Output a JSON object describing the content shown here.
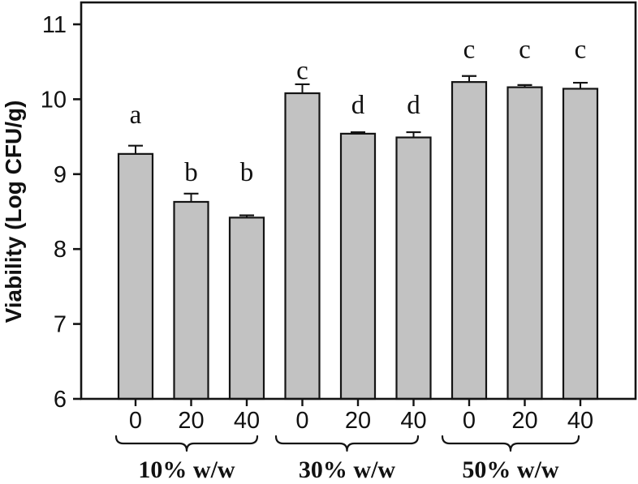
{
  "chart_data": {
    "type": "bar",
    "title": "",
    "xlabel": "",
    "ylabel": "Viability (Log CFU/g)",
    "ylim": [
      6,
      11
    ],
    "yticks": [
      "6",
      "7",
      "8",
      "9",
      "10",
      "11"
    ],
    "grid": "off",
    "legend": "none",
    "bar_fill_color": "#c2c2c2",
    "bar_edge_color": "#141414",
    "axis_color": "#141414",
    "text_color": "#111111",
    "groups": [
      {
        "label": "10% w/w",
        "categories": [
          "0",
          "20",
          "40"
        ],
        "values": [
          9.27,
          8.63,
          8.42
        ],
        "errors": [
          0.11,
          0.11,
          0.03
        ],
        "letters": [
          "a",
          "b",
          "b"
        ],
        "letter_heights": [
          9.68,
          8.91,
          8.91
        ]
      },
      {
        "label": "30% w/w",
        "categories": [
          "0",
          "20",
          "40"
        ],
        "values": [
          10.08,
          9.54,
          9.49
        ],
        "errors": [
          0.12,
          0.02,
          0.07
        ],
        "letters": [
          "c",
          "d",
          "d"
        ],
        "letter_heights": [
          10.27,
          9.81,
          9.81
        ]
      },
      {
        "label": "50% w/w",
        "categories": [
          "0",
          "20",
          "40"
        ],
        "values": [
          10.23,
          10.16,
          10.14
        ],
        "errors": [
          0.08,
          0.03,
          0.08
        ],
        "letters": [
          "c",
          "c",
          "c"
        ],
        "letter_heights": [
          10.55,
          10.55,
          10.55
        ]
      }
    ]
  }
}
